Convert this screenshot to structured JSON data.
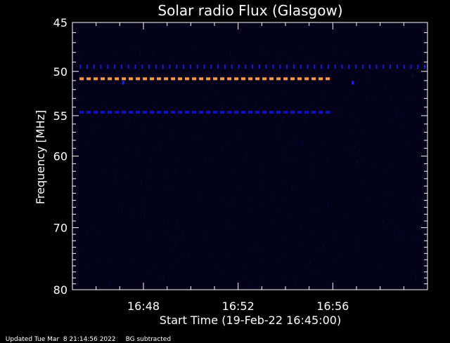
{
  "chart_data": {
    "type": "heatmap",
    "title": "Solar radio Flux (Glasgow)",
    "ylabel": "Frequency [MHz]",
    "xlabel": "Start Time (19-Feb-22 16:45:00)",
    "y_axis": {
      "scale": "log",
      "inverted": true,
      "range": [
        45,
        80
      ],
      "ticks": [
        45,
        50,
        55,
        60,
        70,
        80
      ]
    },
    "x_axis": {
      "range_minutes_since_start": [
        0,
        15
      ],
      "ticks": [
        {
          "label": "16:48",
          "minute": 3
        },
        {
          "label": "16:52",
          "minute": 7
        },
        {
          "label": "16:56",
          "minute": 11
        }
      ],
      "minor_tick_interval_minutes": 1
    },
    "background_color": "#03021a",
    "features": [
      {
        "name": "",
        "frequency_mhz": 50.8,
        "time_start": 0.3,
        "time_end": 11.0,
        "pattern": "dashed",
        "color": "#ff9a3c"
      },
      {
        "name": "",
        "frequency_mhz": 54.6,
        "time_start": 0.3,
        "time_end": 11.0,
        "pattern": "dashed",
        "color": "#1010c8"
      },
      {
        "name": "",
        "frequency_mhz": 49.5,
        "time_start": 0.3,
        "time_end": 15.0,
        "pattern": "dotted",
        "color": "#1a1ad8"
      },
      {
        "name": "",
        "frequency_mhz": 51.2,
        "time_start": 2.1,
        "time_end": 2.2,
        "pattern": "spot",
        "color": "#2222ee"
      },
      {
        "name": "",
        "frequency_mhz": 51.2,
        "time_start": 11.8,
        "time_end": 11.9,
        "pattern": "spot",
        "color": "#2222ee"
      }
    ]
  },
  "footer": {
    "updated": "Updated Tue Mar  8 21:14:56 2022",
    "note": "BG subtracted"
  }
}
